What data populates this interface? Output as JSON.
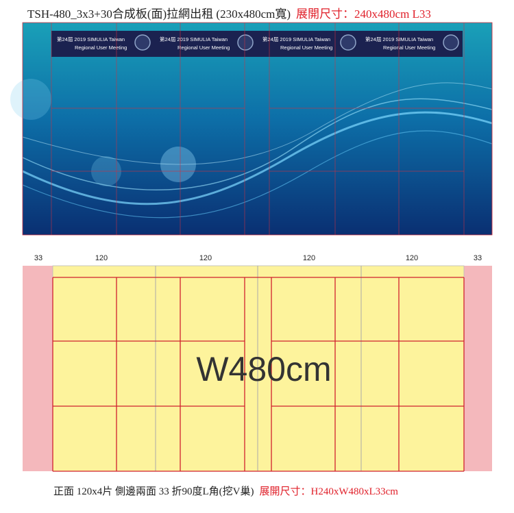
{
  "title": {
    "text": "TSH-480_3x3+30合成板(面)拉網出租 (230x480cm寬)",
    "spec": "展開尺寸：240x480cm L33"
  },
  "banner": {
    "panels": [
      {
        "line1": "第24屆 2019 SIMULIA Taiwan",
        "line2": "Regional User Meeting"
      },
      {
        "line1": "第24屆 2019 SIMULIA Taiwan",
        "line2": "Regional User Meeting"
      },
      {
        "line1": "第24屆 2019 SIMULIA Taiwan",
        "line2": "Regional User Meeting"
      },
      {
        "line1": "第24屆 2019 SIMULIA Taiwan",
        "line2": "Regional User Meeting"
      }
    ]
  },
  "dimensions": [
    33,
    120,
    120,
    120,
    120,
    33
  ],
  "layout": {
    "label": "W480cm"
  },
  "caption": {
    "text": "正面 120x4片 側邊兩面 33 折90度L角(挖V巢)",
    "spec": "展開尺寸：H240xW480xL33cm"
  }
}
